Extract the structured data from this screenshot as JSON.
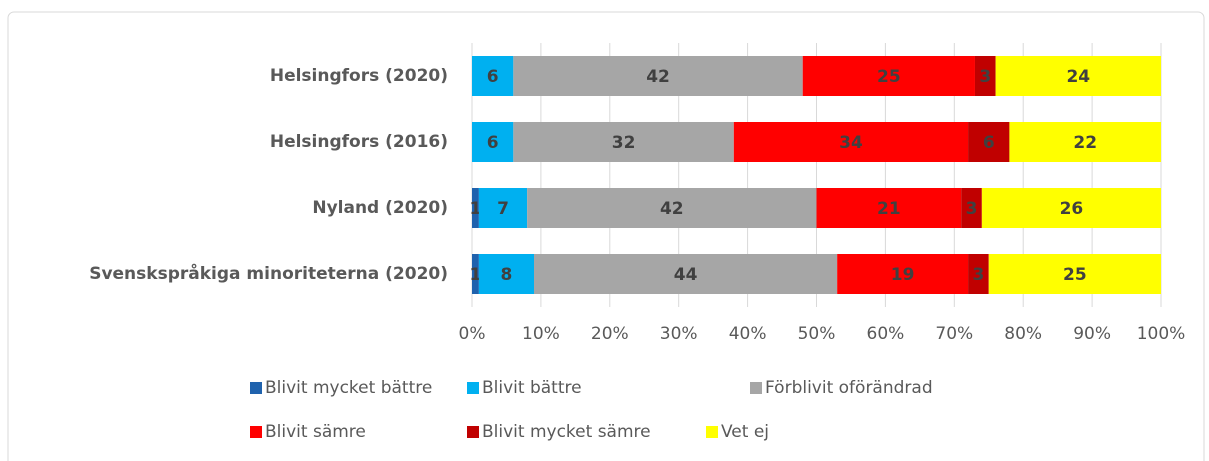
{
  "chart_data": {
    "type": "stacked-barh",
    "categories": [
      "Helsingfors (2020)",
      "Helsingfors (2016)",
      "Nyland (2020)",
      "Svenskspråkiga minoriteterna (2020)"
    ],
    "series": [
      {
        "name": "Blivit mycket bättre",
        "color": "#1f62ad",
        "values": [
          0,
          0,
          1,
          1
        ]
      },
      {
        "name": "Blivit bättre",
        "color": "#00b0f0",
        "values": [
          6,
          6,
          7,
          8
        ]
      },
      {
        "name": "Förblivit oförändrad",
        "color": "#a6a6a6",
        "values": [
          42,
          32,
          42,
          44
        ]
      },
      {
        "name": "Blivit sämre",
        "color": "#ff0000",
        "values": [
          25,
          34,
          21,
          19
        ]
      },
      {
        "name": "Blivit mycket sämre",
        "color": "#c00000",
        "values": [
          3,
          6,
          3,
          3
        ]
      },
      {
        "name": "Vet ej",
        "color": "#ffff00",
        "values": [
          24,
          22,
          26,
          25
        ]
      }
    ],
    "xlim": [
      0,
      100
    ],
    "xticks": [
      {
        "value": 0,
        "label": "0%"
      },
      {
        "value": 10,
        "label": "10%"
      },
      {
        "value": 20,
        "label": "20%"
      },
      {
        "value": 30,
        "label": "30%"
      },
      {
        "value": 40,
        "label": "40%"
      },
      {
        "value": 50,
        "label": "50%"
      },
      {
        "value": 60,
        "label": "60%"
      },
      {
        "value": 70,
        "label": "70%"
      },
      {
        "value": 80,
        "label": "80%"
      },
      {
        "value": 90,
        "label": "90%"
      },
      {
        "value": 100,
        "label": "100%"
      }
    ],
    "grid": true,
    "legend": "bottom"
  }
}
